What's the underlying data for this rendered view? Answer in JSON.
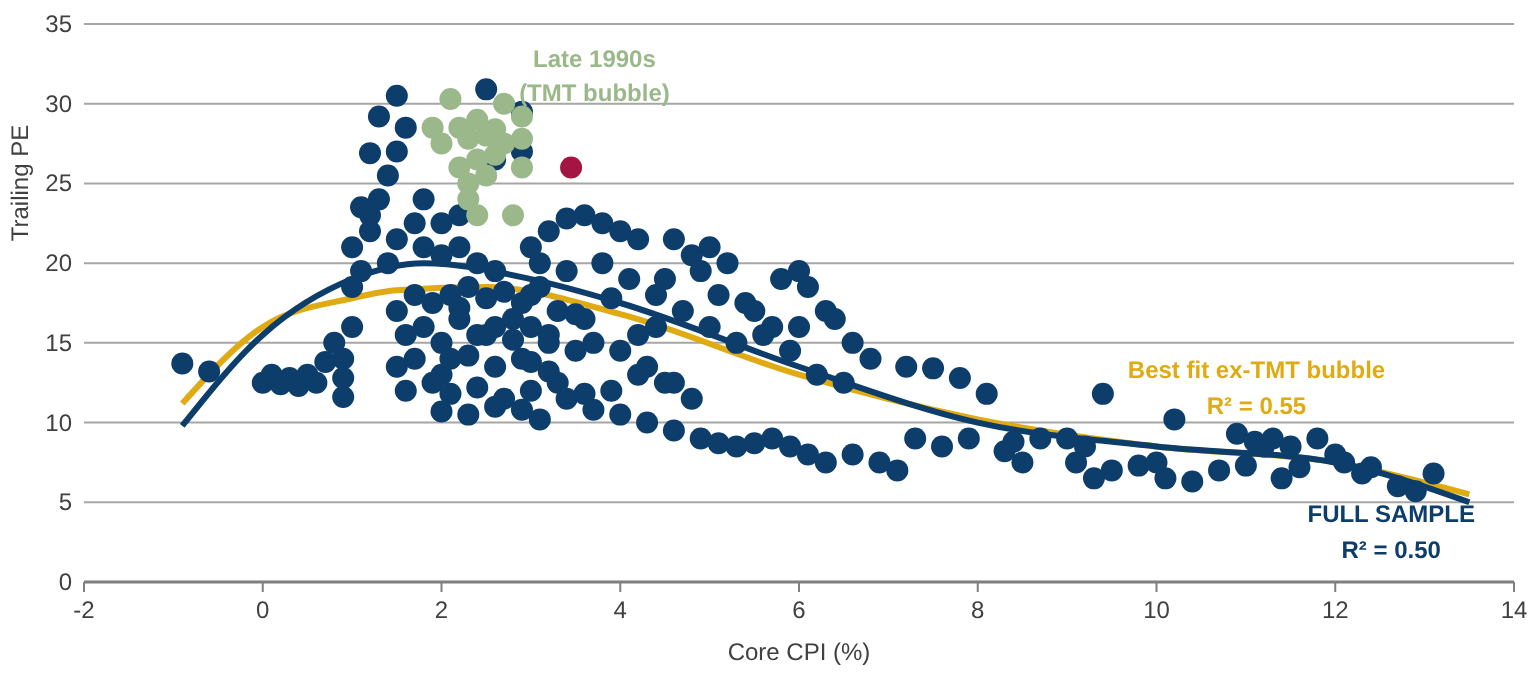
{
  "chart_data": {
    "type": "scatter",
    "xlabel": "Core CPI (%)",
    "ylabel": "Trailing PE",
    "xlim": [
      -2,
      14
    ],
    "xticks": [
      -2,
      0,
      2,
      4,
      6,
      8,
      10,
      12,
      14
    ],
    "ylim": [
      0,
      35
    ],
    "yticks": [
      0,
      5,
      10,
      15,
      20,
      25,
      30,
      35
    ],
    "grid": "y",
    "series": [
      {
        "marker": "circle",
        "color": "#0d3d6b",
        "x": [
          -0.9,
          -0.6,
          0,
          0.1,
          0.2,
          0.3,
          0.4,
          0.5,
          0.6,
          0.7,
          0.9,
          0.9,
          0.9,
          0.8,
          1.0,
          1.0,
          1.1,
          1.0,
          1.2,
          1.3,
          1.4,
          1.5,
          1.6,
          1.5,
          1.3,
          1.2,
          1.1,
          1.2,
          1.5,
          1.4,
          1.7,
          1.8,
          2.0,
          2.2,
          2.4,
          2.6,
          2.0,
          1.8,
          2.2,
          2.6,
          2.9,
          2.5,
          2.9,
          1.5,
          1.7,
          1.9,
          2.1,
          2.3,
          2.5,
          2.7,
          2.9,
          3.1,
          1.6,
          1.8,
          2.0,
          2.2,
          2.4,
          2.6,
          2.8,
          3.0,
          3.2,
          1.5,
          1.7,
          2.0,
          2.3,
          2.6,
          2.9,
          3.2,
          3.5,
          1.6,
          1.9,
          2.1,
          2.4,
          2.7,
          3.0,
          3.3,
          3.6,
          2.0,
          2.3,
          2.6,
          2.9,
          3.1,
          3.4,
          3.7,
          2.1,
          2.5,
          2.8,
          3.2,
          3.5,
          2.2,
          3.0,
          3.3,
          3.6,
          3.9,
          4.2,
          3.0,
          3.2,
          3.4,
          3.6,
          3.8,
          4.0,
          4.2,
          3.1,
          3.0,
          4.5,
          4.8,
          5.0,
          5.2,
          4.6,
          4.9,
          5.1,
          5.4,
          4.4,
          4.7,
          5.0,
          5.3,
          3.7,
          4.0,
          4.3,
          4.6,
          3.9,
          4.2,
          4.5,
          4.8,
          5.8,
          6.0,
          6.1,
          6.3,
          6.0,
          6.4,
          6.6,
          6.8,
          7.2,
          7.5,
          7.8,
          5.5,
          5.7,
          5.9,
          6.2,
          6.5,
          5.6,
          4.0,
          4.3,
          4.6,
          4.9,
          5.1,
          5.3,
          5.5,
          5.7,
          5.9,
          6.1,
          6.3,
          6.6,
          6.9,
          7.1,
          7.3,
          7.6,
          7.9,
          8.3,
          8.5,
          8.7,
          9.1,
          9.3,
          9.5,
          9.8,
          10.1,
          10.4,
          10.7,
          11.0,
          11.2,
          11.4,
          11.6,
          12.0,
          12.3,
          12.7,
          13.1,
          12.9,
          8.1,
          9.4,
          10.2,
          10.9,
          11.1,
          9.0,
          9.2,
          8.4,
          11.5,
          11.8,
          12.1,
          12.4,
          10.0,
          11.3,
          3.4,
          3.8,
          4.1,
          4.4
        ],
        "values": [
          13.7,
          13.2,
          12.5,
          13,
          12.4,
          12.8,
          12.3,
          13,
          12.5,
          13.8,
          14,
          12.8,
          11.6,
          15,
          16,
          18.5,
          19.5,
          21,
          23,
          24,
          25.5,
          27,
          28.5,
          30.5,
          29.2,
          26.9,
          23.5,
          22,
          21.5,
          20,
          22.5,
          21,
          20.5,
          21,
          20,
          19.5,
          22.5,
          24,
          23,
          26.5,
          27,
          30.9,
          29.5,
          17,
          18,
          17.5,
          18,
          18.5,
          17.8,
          18.2,
          17.5,
          18.5,
          15.5,
          16,
          15,
          16.5,
          15.5,
          16,
          15.2,
          16,
          15.5,
          13.5,
          14,
          13,
          14.2,
          13.5,
          14,
          13.2,
          14.5,
          12,
          12.5,
          11.8,
          12.2,
          11.5,
          12,
          12.5,
          11.8,
          10.7,
          10.5,
          11,
          10.8,
          10.2,
          11.5,
          10.8,
          14,
          15.5,
          16.5,
          15,
          16.8,
          17.2,
          13.8,
          17,
          16.5,
          17.8,
          15.5,
          21,
          22,
          22.8,
          23,
          22.5,
          22,
          21.5,
          20,
          18,
          19,
          20.5,
          21,
          20,
          21.5,
          19.5,
          18,
          17.5,
          16,
          17,
          16,
          15,
          15,
          14.5,
          13.5,
          12.5,
          12,
          13,
          12.5,
          11.5,
          19,
          19.5,
          18.5,
          17,
          16,
          16.5,
          15,
          14,
          13.5,
          13.4,
          12.8,
          17,
          16,
          14.5,
          13,
          12.5,
          15.5,
          10.5,
          10,
          9.5,
          9,
          8.7,
          8.5,
          8.7,
          9,
          8.5,
          8,
          7.5,
          8,
          7.5,
          7,
          9,
          8.5,
          9,
          8.2,
          7.5,
          9,
          7.5,
          6.5,
          7,
          7.3,
          6.5,
          6.3,
          7,
          7.3,
          8.5,
          6.5,
          7.2,
          8,
          6.8,
          6,
          6.8,
          5.7,
          11.8,
          11.8,
          10.2,
          9.3,
          8.8,
          9,
          8.5,
          8.8,
          8.5,
          9,
          7.5,
          7.2,
          7.5,
          9,
          19.5,
          20,
          19,
          18
        ]
      },
      {
        "marker": "circle",
        "name": "Late 1990s\n(TMT bubble)",
        "color": "#9ab88a",
        "x": [
          1.9,
          2.1,
          2.2,
          2.0,
          2.3,
          2.4,
          2.6,
          2.7,
          2.9,
          2.4,
          2.5,
          2.6,
          2.3,
          2.3,
          2.4,
          2.8,
          2.2,
          2.7,
          2.9,
          2.5,
          2.9
        ],
        "values": [
          28.5,
          30.3,
          28.5,
          27.5,
          27.8,
          29,
          28.4,
          30,
          29.2,
          26.5,
          25.5,
          26.8,
          25,
          24,
          23,
          23,
          26,
          27.5,
          26,
          28,
          27.8
        ]
      },
      {
        "marker": "circle",
        "color": "#a3163f",
        "x": [
          3.45
        ],
        "values": [
          26
        ]
      },
      {
        "type": "line",
        "name": "Best fit ex-TMT bubble\nR² = 0.55",
        "color": "#e0ab12",
        "x": [
          -0.9,
          0,
          1,
          1.5,
          2.5,
          4,
          6,
          8,
          10,
          12,
          13.5
        ],
        "values": [
          11.2,
          16,
          17.8,
          18.3,
          18.5,
          16.8,
          13,
          10.2,
          8.5,
          7.5,
          5.5
        ]
      },
      {
        "type": "line",
        "name": "FULL SAMPLE\nR² = 0.50",
        "color": "#0d3d6b",
        "x": [
          -0.9,
          0,
          1,
          1.8,
          3,
          4,
          6,
          8,
          10,
          12,
          13.5
        ],
        "values": [
          9.8,
          15.5,
          19,
          20,
          19,
          17.5,
          13.5,
          10,
          8.5,
          7.5,
          5
        ]
      }
    ]
  }
}
